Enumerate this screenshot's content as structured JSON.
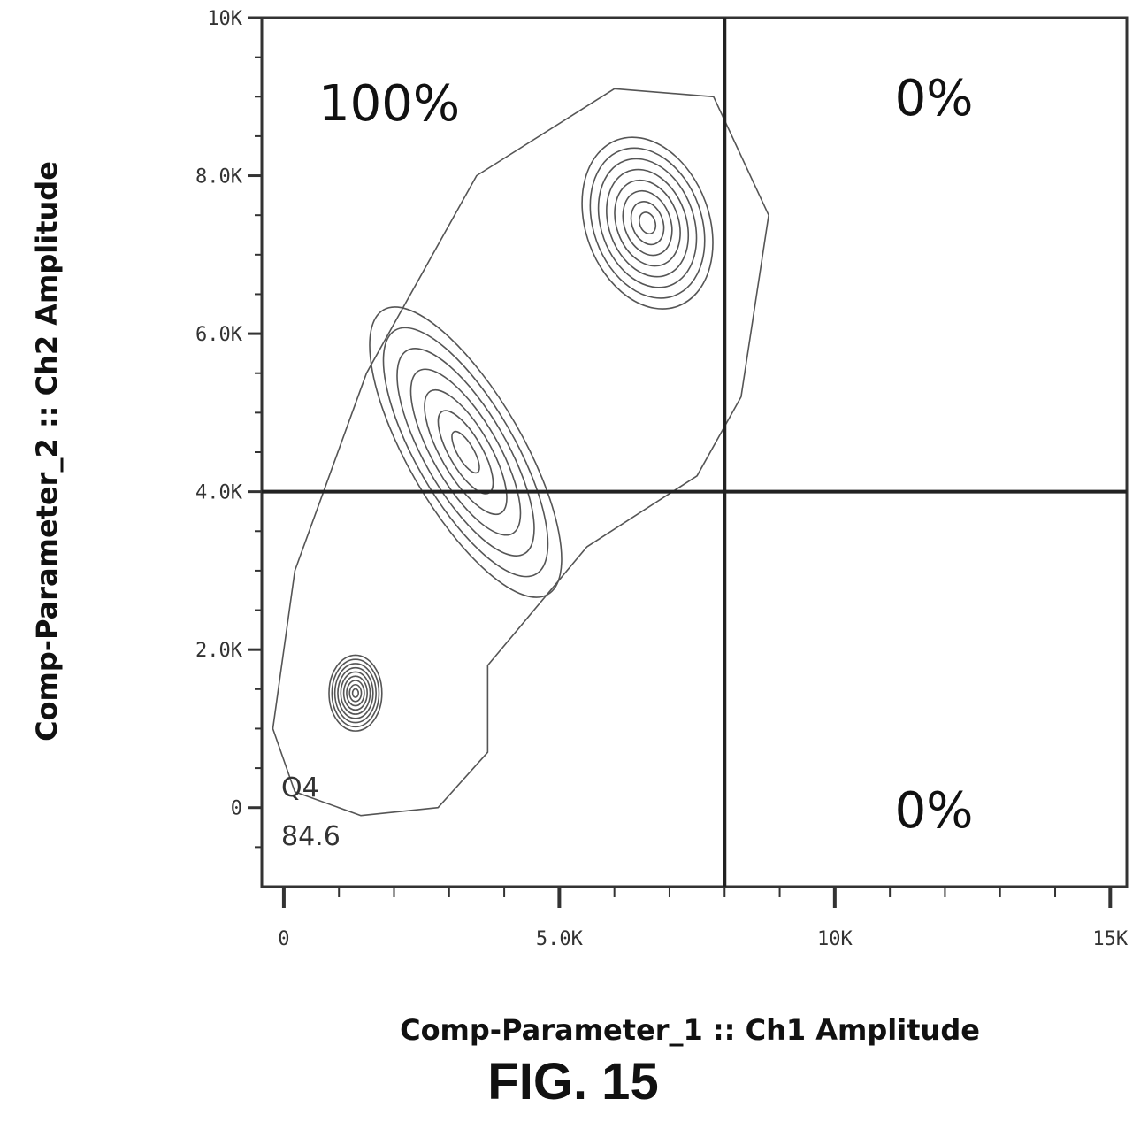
{
  "chart_data": {
    "type": "contour",
    "xlabel": "Comp-Parameter_1 :: Ch1 Amplitude",
    "ylabel": "Comp-Parameter_2 :: Ch2 Amplitude",
    "xlim": [
      -400,
      15300
    ],
    "ylim": [
      -1000,
      10000
    ],
    "x_ticks": [
      {
        "value": 0,
        "label": "0"
      },
      {
        "value": 5000,
        "label": "5.0K"
      },
      {
        "value": 10000,
        "label": "10K"
      },
      {
        "value": 15000,
        "label": "15K"
      }
    ],
    "y_ticks": [
      {
        "value": 0,
        "label": "0"
      },
      {
        "value": 2000,
        "label": "2.0K"
      },
      {
        "value": 4000,
        "label": "4.0K"
      },
      {
        "value": 6000,
        "label": "6.0K"
      },
      {
        "value": 8000,
        "label": "8.0K"
      },
      {
        "value": 10000,
        "label": "10K"
      }
    ],
    "gates": {
      "x_threshold": 8000,
      "y_threshold": 4000
    },
    "quadrant_labels": {
      "upper_left": "100%",
      "upper_right": "0%",
      "lower_right": "0%"
    },
    "gate_label": {
      "name": "Q4",
      "value": "84.6"
    },
    "clusters": [
      {
        "x": 1300,
        "y": 1450,
        "sx": 300,
        "sy": 300,
        "rot": 0,
        "levels": 9
      },
      {
        "x": 6600,
        "y": 7400,
        "sx": 700,
        "sy": 700,
        "rot": 20,
        "levels": 8
      },
      {
        "x": 3300,
        "y": 4500,
        "sx": 650,
        "sy": 1300,
        "rot": 30,
        "levels": 7
      }
    ]
  },
  "figure_label": "FIG. 15"
}
